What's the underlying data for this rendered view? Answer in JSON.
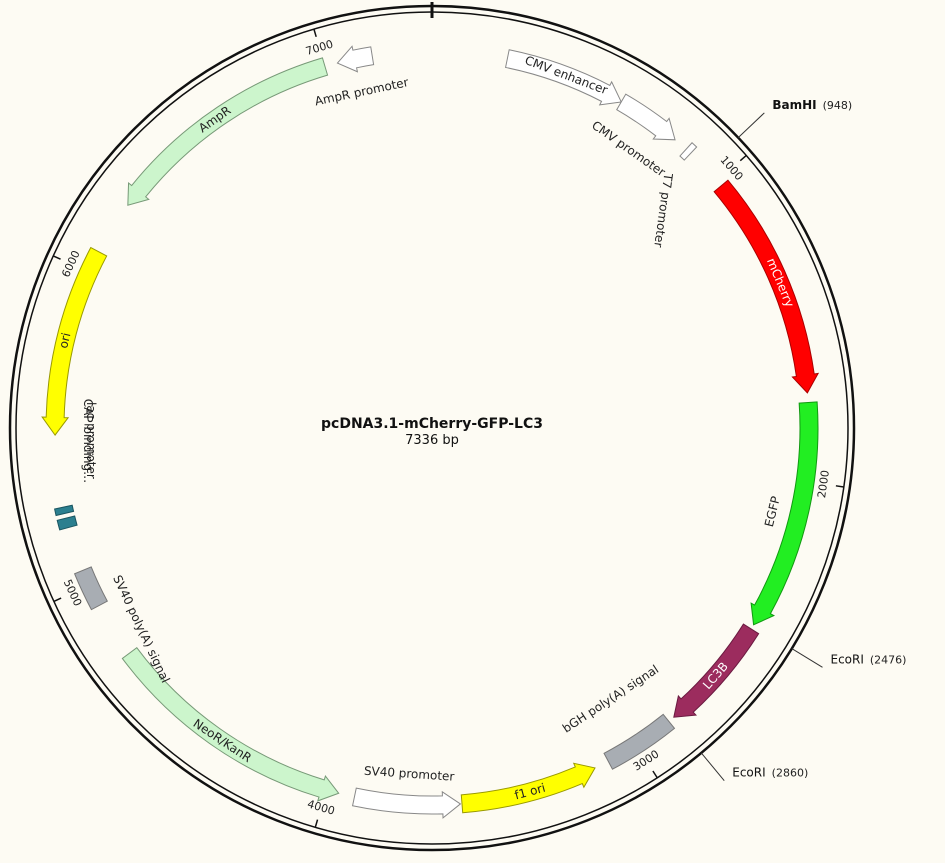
{
  "plasmid": {
    "name": "pcDNA3.1-mCherry-GFP-LC3",
    "size_label": "7336 bp",
    "length": 7336
  },
  "ticks": [
    {
      "pos": 1000,
      "label": "1000"
    },
    {
      "pos": 2000,
      "label": "2000"
    },
    {
      "pos": 3000,
      "label": "3000"
    },
    {
      "pos": 4000,
      "label": "4000"
    },
    {
      "pos": 5000,
      "label": "5000"
    },
    {
      "pos": 6000,
      "label": "6000"
    },
    {
      "pos": 7000,
      "label": "7000"
    }
  ],
  "features": [
    {
      "name": "CMV enhancer",
      "start": 235,
      "end": 614,
      "dir": 1,
      "color": "#ffffff",
      "stroke": "#888888",
      "label_inside": true,
      "label_color": "#222222"
    },
    {
      "name": "CMV promoter",
      "start": 614,
      "end": 818,
      "dir": 1,
      "color": "#ffffff",
      "stroke": "#888888",
      "label_inside": false
    },
    {
      "name": "T7 promoter",
      "start": 863,
      "end": 882,
      "dir": 1,
      "color": "#ffffff",
      "stroke": "#888888",
      "label_inside": false
    },
    {
      "name": "mCherry",
      "start": 1020,
      "end": 1725,
      "dir": 1,
      "color": "#ff0000",
      "stroke": "#aa0000",
      "label_inside": true,
      "label_color": "#ffffff"
    },
    {
      "name": "EGFP",
      "start": 1755,
      "end": 2475,
      "dir": 1,
      "color": "#22ee22",
      "stroke": "#119911",
      "label_inside": false
    },
    {
      "name": "LC3B",
      "start": 2490,
      "end": 2855,
      "dir": 1,
      "color": "#9c2c5e",
      "stroke": "#6a1a40",
      "label_inside": true,
      "label_color": "#ffffff"
    },
    {
      "name": "bGH poly(A) signal",
      "start": 2875,
      "end": 3100,
      "dir": 0,
      "color": "#a8adb3",
      "stroke": "#777777",
      "label_inside": false
    },
    {
      "name": "f1 ori",
      "start": 3146,
      "end": 3575,
      "dir": -1,
      "color": "#ffff00",
      "stroke": "#999900",
      "label_inside": true,
      "label_color": "#222222"
    },
    {
      "name": "SV40 promoter",
      "start": 3580,
      "end": 3910,
      "dir": -1,
      "color": "#ffffff",
      "stroke": "#888888",
      "label_inside": false
    },
    {
      "name": "NeoR/KanR",
      "start": 3960,
      "end": 4755,
      "dir": -1,
      "color": "#ccf5cc",
      "stroke": "#779977",
      "label_inside": true,
      "label_color": "#222222"
    },
    {
      "name": "SV40 poly(A) signal",
      "start": 4930,
      "end": 5050,
      "dir": 0,
      "color": "#a8adb3",
      "stroke": "#777777",
      "label_inside": false
    },
    {
      "name": "lac promoter",
      "start": 5190,
      "end": 5220,
      "dir": 0,
      "color": "#2b7f8f",
      "stroke": "#1a5560",
      "label_inside": false
    },
    {
      "name": "CAP binding…",
      "start": 5235,
      "end": 5255,
      "dir": 0,
      "color": "#2b7f8f",
      "stroke": "#1a5560",
      "label_inside": false
    },
    {
      "name": "ori",
      "start": 5480,
      "end": 6070,
      "dir": -1,
      "color": "#ffff00",
      "stroke": "#999900",
      "label_inside": true,
      "label_color": "#222222"
    },
    {
      "name": "AmpR",
      "start": 6240,
      "end": 7000,
      "dir": -1,
      "color": "#ccf5cc",
      "stroke": "#779977",
      "label_inside": true,
      "label_color": "#222222"
    },
    {
      "name": "AmpR promoter",
      "start": 7040,
      "end": 7150,
      "dir": -1,
      "color": "#ffffff",
      "stroke": "#888888",
      "label_inside": false
    }
  ],
  "sites": [
    {
      "name": "BamHI",
      "pos_label": "(948)",
      "pos": 948,
      "bold": true
    },
    {
      "name": "EcoRI",
      "pos_label": "(2476)",
      "pos": 2476,
      "bold": false
    },
    {
      "name": "EcoRI",
      "pos_label": "(2860)",
      "pos": 2860,
      "bold": false
    }
  ]
}
